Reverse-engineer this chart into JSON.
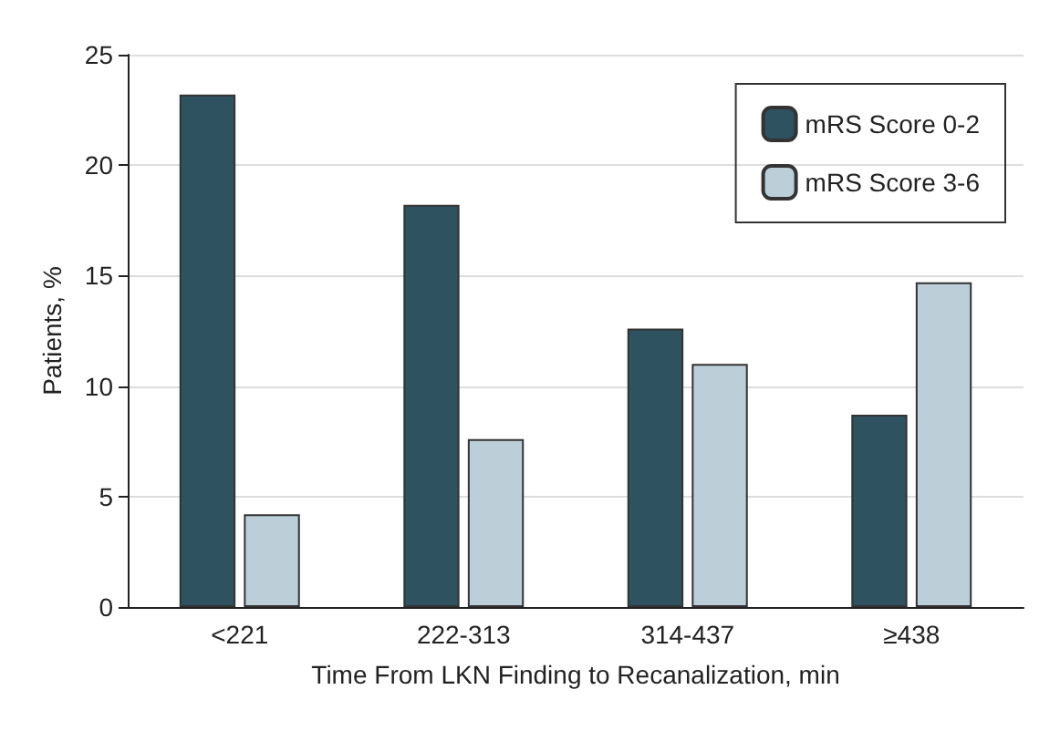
{
  "chart_data": {
    "type": "bar",
    "xlabel": "Time From LKN Finding to Recanalization, min",
    "ylabel": "Patients, %",
    "categories": [
      "<221",
      "222-313",
      "314-437",
      "≥438"
    ],
    "series": [
      {
        "name": "mRS Score 0-2",
        "color": "#2e5260",
        "values": [
          23.2,
          18.2,
          12.6,
          8.7
        ]
      },
      {
        "name": "mRS Score 3-6",
        "color": "#bccfd8",
        "values": [
          4.2,
          7.6,
          11.0,
          14.7
        ]
      }
    ],
    "ylim": [
      0,
      25
    ],
    "yticks": [
      0,
      5,
      10,
      15,
      20,
      25
    ],
    "grid": "y",
    "legend": "top right"
  }
}
